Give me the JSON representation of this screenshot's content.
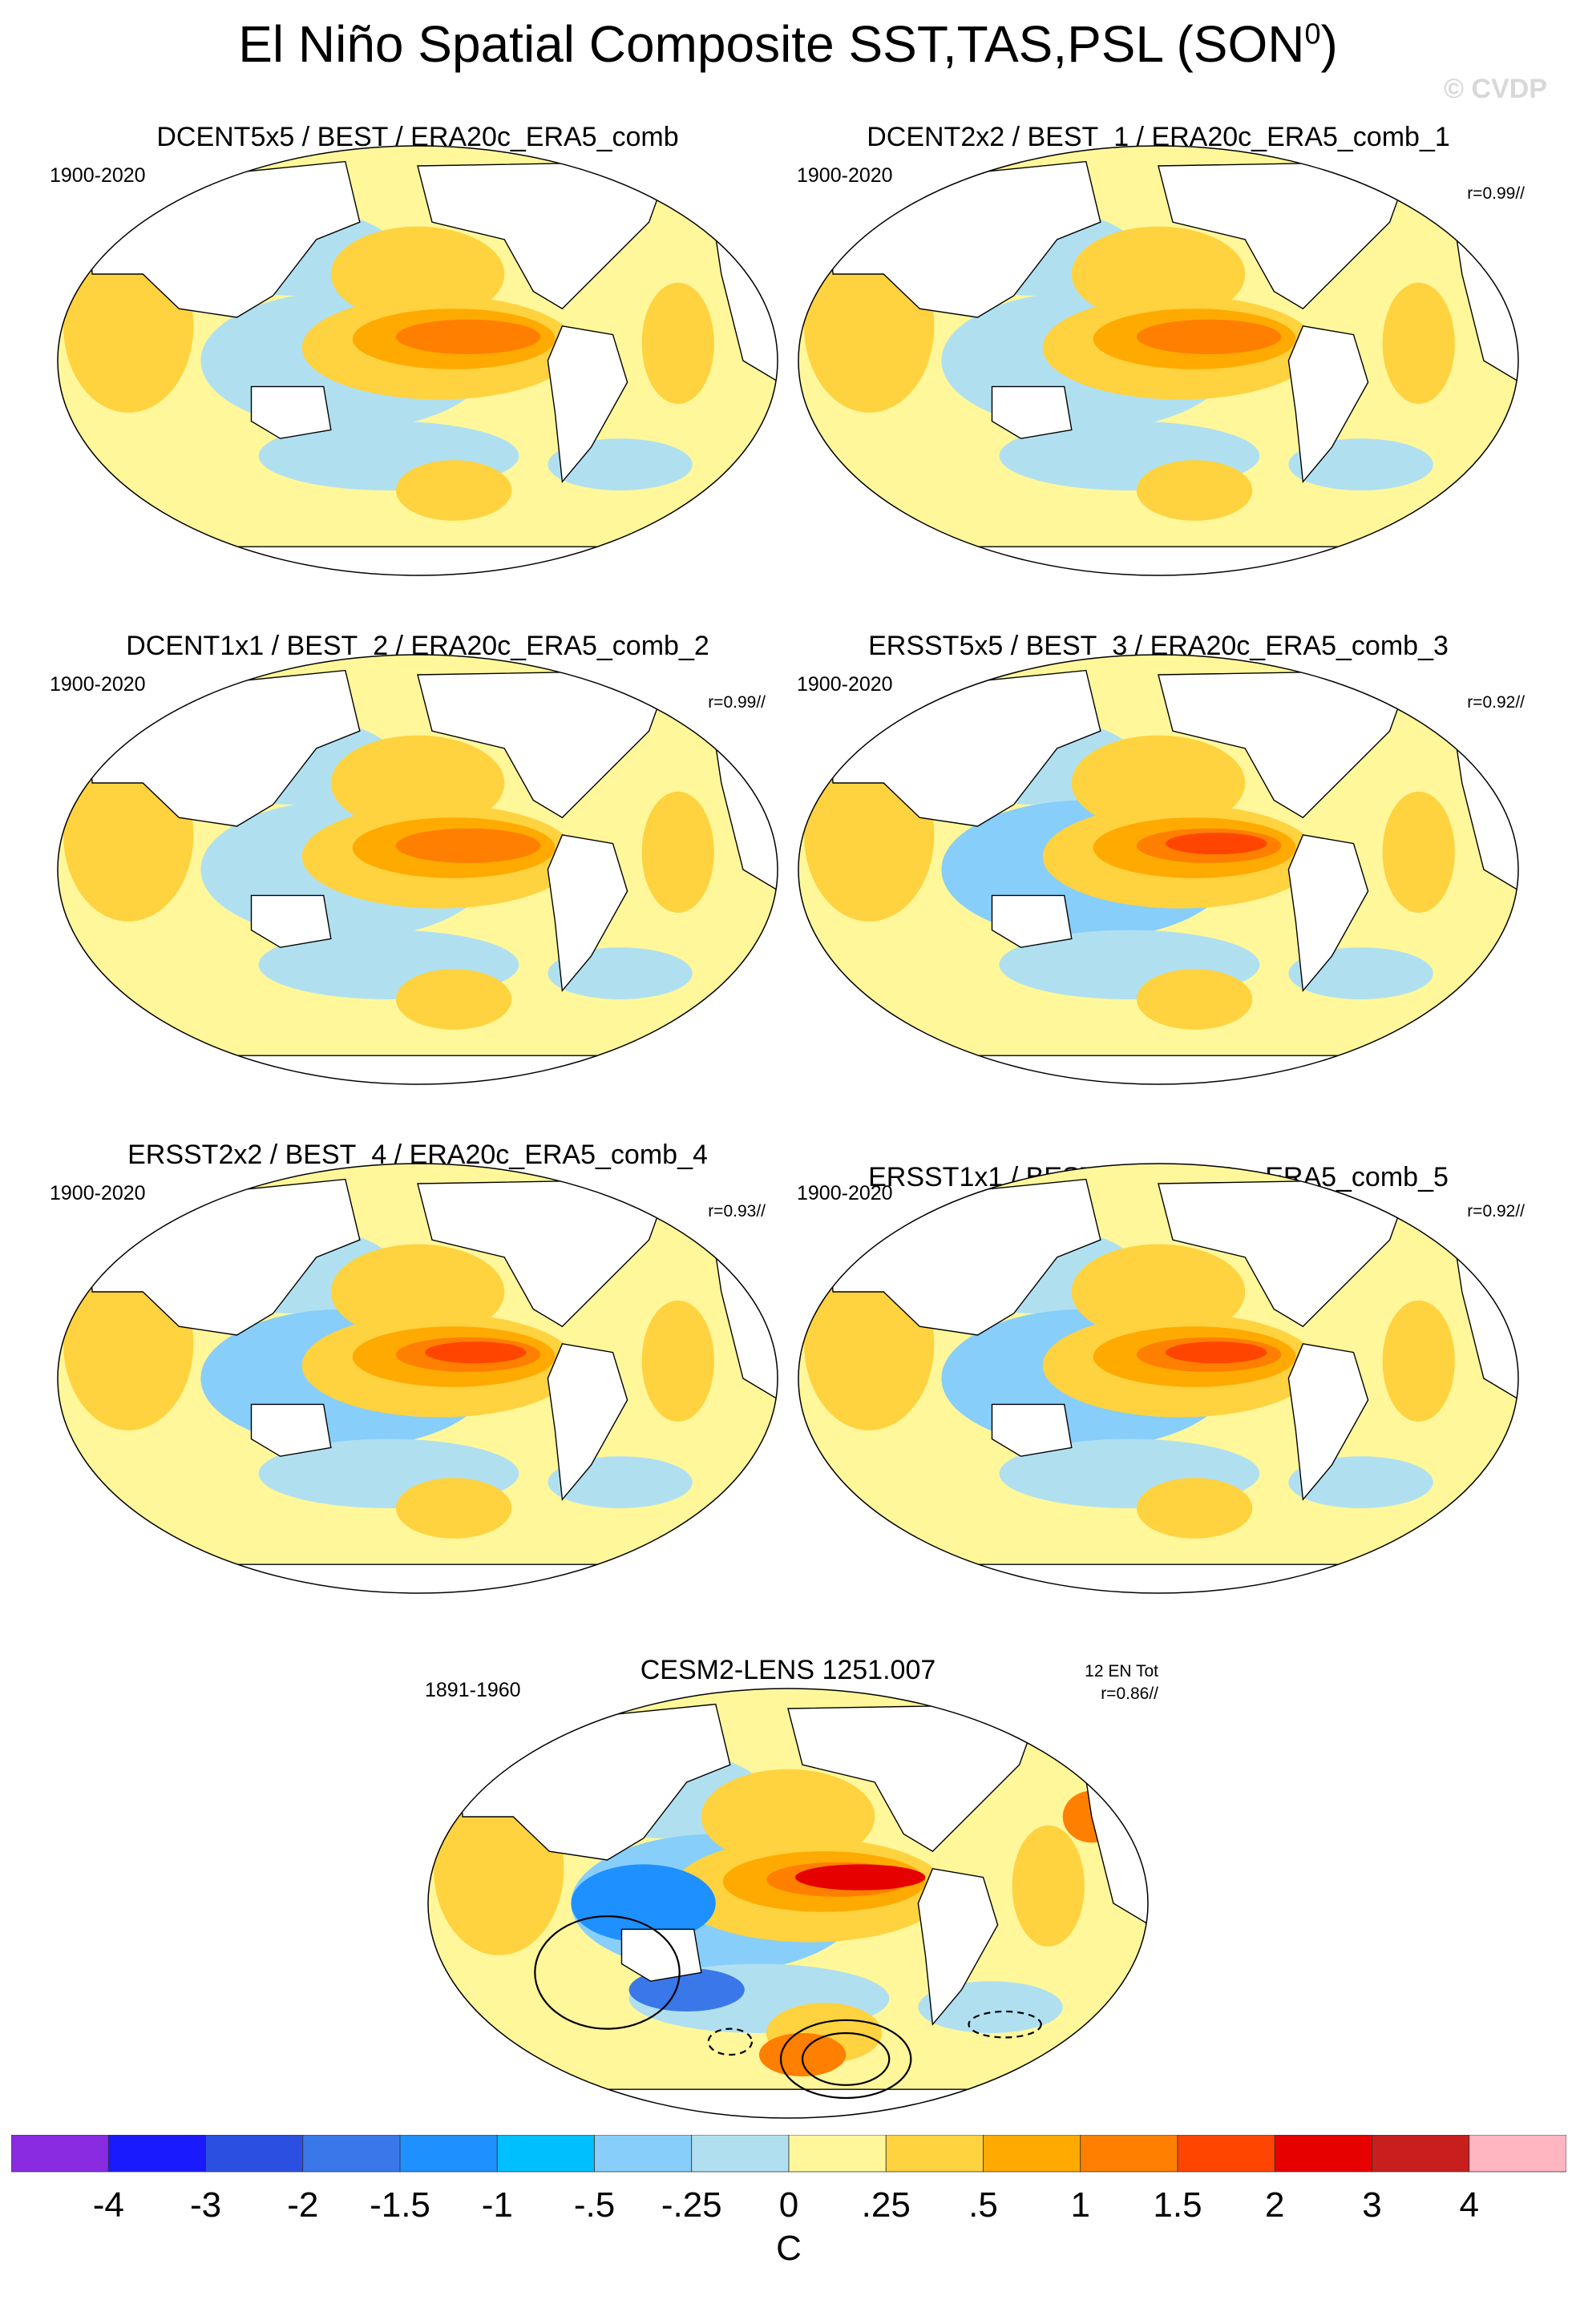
{
  "title": "El Niño Spatial Composite SST,TAS,PSL (SON",
  "title_superscript": "0",
  "title_close": ")",
  "copyright": "© CVDP",
  "panels": [
    {
      "title": "DCENT5x5 / BEST / ERA20c_ERA5_comb",
      "period": "1900-2020",
      "corr": ""
    },
    {
      "title": "DCENT2x2 / BEST_1 / ERA20c_ERA5_comb_1",
      "period": "1900-2020",
      "corr": "r=0.99//"
    },
    {
      "title": "DCENT1x1 / BEST_2 / ERA20c_ERA5_comb_2",
      "period": "1900-2020",
      "corr": "r=0.99//"
    },
    {
      "title": "ERSST5x5 / BEST_3 / ERA20c_ERA5_comb_3",
      "period": "1900-2020",
      "corr": "r=0.92//"
    },
    {
      "title": "ERSST2x2 / BEST_4 / ERA20c_ERA5_comb_4",
      "period": "1900-2020",
      "corr": "r=0.93//"
    },
    {
      "title": "ERSST1x1 / BEST_5 / ERA20c_ERA5_comb_5",
      "period": "1900-2020",
      "corr": "r=0.92//"
    },
    {
      "title": "CESM2-LENS 1251.007",
      "period": "1891-1960",
      "corr": "r=0.86//",
      "events": "12 EN Tot"
    }
  ],
  "colorbar": {
    "units": "C",
    "colors": [
      "#8a2be2",
      "#1a1aff",
      "#2b4fe0",
      "#3a78ea",
      "#1e90ff",
      "#00bfff",
      "#87cefa",
      "#b0e0f0",
      "#fff79a",
      "#ffd23f",
      "#ffaa00",
      "#ff7f00",
      "#ff4500",
      "#e60000",
      "#c81e1e",
      "#ffb6c1"
    ],
    "labels": [
      "-4",
      "-3",
      "-2",
      "-1.5",
      "-1",
      "-.5",
      "-.25",
      "0",
      ".25",
      ".5",
      "1",
      "1.5",
      "2",
      "3",
      "4"
    ]
  },
  "chart_data": {
    "type": "heatmap",
    "title": "El Niño Spatial Composite SST,TAS,PSL (SON0)",
    "projection": "Robinson (Pacific-centered)",
    "variables": [
      "SST",
      "TAS",
      "PSL"
    ],
    "units": "C",
    "colorbar_levels": [
      -4,
      -3,
      -2,
      -1.5,
      -1,
      -0.5,
      -0.25,
      0,
      0.25,
      0.5,
      1,
      1.5,
      2,
      3,
      4
    ],
    "panels": [
      {
        "name": "DCENT5x5 / BEST / ERA20c_ERA5_comb",
        "period": "1900-2020",
        "pattern_corr": null,
        "max_anomaly_region": "central-eastern equatorial Pacific",
        "max_anomaly_approx": 1.0
      },
      {
        "name": "DCENT2x2 / BEST_1 / ERA20c_ERA5_comb_1",
        "period": "1900-2020",
        "pattern_corr": 0.99,
        "max_anomaly_region": "central-eastern equatorial Pacific",
        "max_anomaly_approx": 1.0
      },
      {
        "name": "DCENT1x1 / BEST_2 / ERA20c_ERA5_comb_2",
        "period": "1900-2020",
        "pattern_corr": 0.99,
        "max_anomaly_region": "central-eastern equatorial Pacific",
        "max_anomaly_approx": 1.0
      },
      {
        "name": "ERSST5x5 / BEST_3 / ERA20c_ERA5_comb_3",
        "period": "1900-2020",
        "pattern_corr": 0.92,
        "max_anomaly_region": "central-eastern equatorial Pacific",
        "max_anomaly_approx": 1.5
      },
      {
        "name": "ERSST2x2 / BEST_4 / ERA20c_ERA5_comb_4",
        "period": "1900-2020",
        "pattern_corr": 0.93,
        "max_anomaly_region": "central-eastern equatorial Pacific",
        "max_anomaly_approx": 1.5
      },
      {
        "name": "ERSST1x1 / BEST_5 / ERA20c_ERA5_comb_5",
        "period": "1900-2020",
        "pattern_corr": 0.92,
        "max_anomaly_region": "central-eastern equatorial Pacific",
        "max_anomaly_approx": 1.5
      },
      {
        "name": "CESM2-LENS 1251.007",
        "period": "1891-1960",
        "pattern_corr": 0.86,
        "events": 12,
        "max_anomaly_region": "central-eastern equatorial Pacific",
        "max_anomaly_approx": 2.0
      }
    ]
  }
}
